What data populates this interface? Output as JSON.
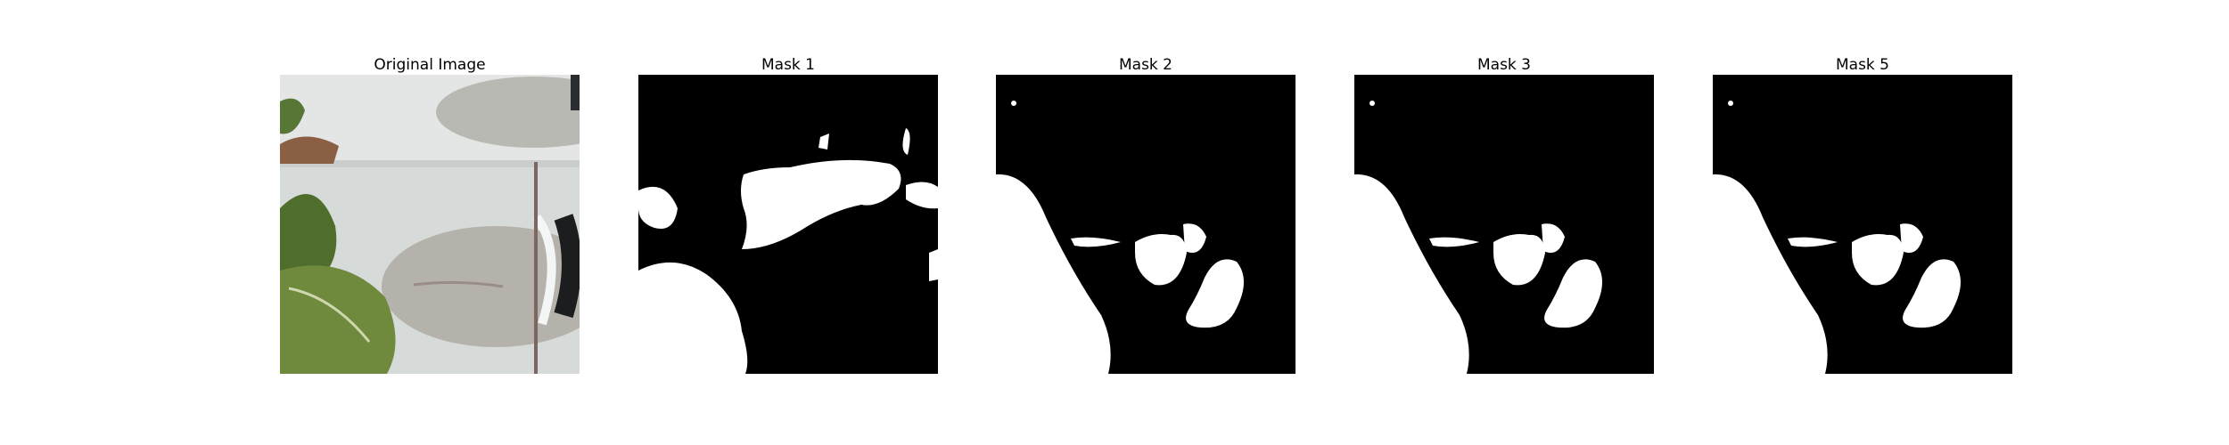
{
  "figure": {
    "panels": [
      {
        "title": "Original Image",
        "kind": "photo"
      },
      {
        "title": "Mask 1",
        "kind": "mask"
      },
      {
        "title": "Mask 2",
        "kind": "mask"
      },
      {
        "title": "Mask 3",
        "kind": "mask"
      },
      {
        "title": "Mask 5",
        "kind": "mask"
      }
    ]
  },
  "colors": {
    "mask_background": "#000000",
    "mask_foreground": "#ffffff",
    "photo_panel": "#d9dcda",
    "photo_shadow": "#b8b7b2",
    "leaf_green": "#5f7a35"
  }
}
